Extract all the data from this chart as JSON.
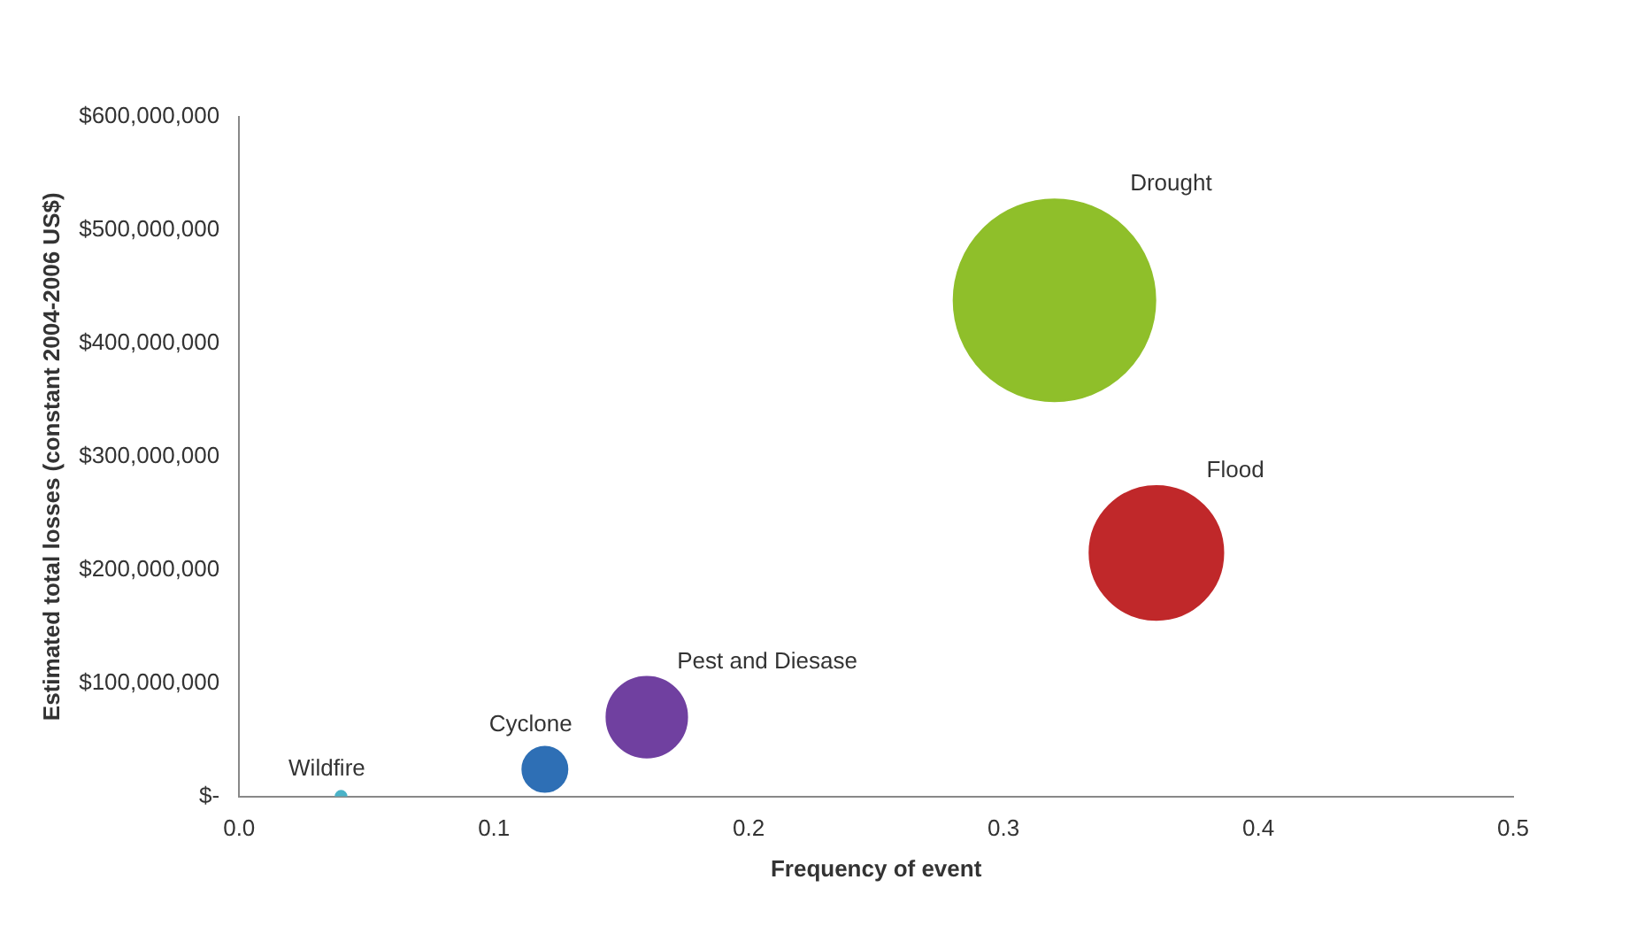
{
  "chart_data": {
    "type": "bubble",
    "xlabel": "Frequency of event",
    "ylabel": "Estimated total losses (constant 2004-2006 US$)",
    "xlim": [
      0,
      0.5
    ],
    "xticks": [
      {
        "value": 0,
        "label": "0.0"
      },
      0.1,
      0.2,
      0.3,
      0.4,
      0.5
    ],
    "ylim": [
      0,
      600000000
    ],
    "yticks": [
      {
        "value": 0,
        "label": "$-"
      },
      {
        "value": 100000000,
        "label": "$100,000,000"
      },
      {
        "value": 200000000,
        "label": "$200,000,000"
      },
      {
        "value": 300000000,
        "label": "$300,000,000"
      },
      {
        "value": 400000000,
        "label": "$400,000,000"
      },
      {
        "value": 500000000,
        "label": "$500,000,000"
      },
      {
        "value": 600000000,
        "label": "$600,000,000"
      }
    ],
    "grid": false,
    "legend": false,
    "series": [
      {
        "name": "Wildfire",
        "color": "#4bb3c8",
        "x": [
          0.04
        ],
        "values": [
          0
        ],
        "sizes": [
          0.003
        ]
      },
      {
        "name": "Cyclone",
        "color": "#2e6fb5",
        "x": [
          0.12
        ],
        "values": [
          24000000
        ],
        "sizes": [
          0.05
        ]
      },
      {
        "name": "Pest and Diesase",
        "color": "#7040a0",
        "x": [
          0.16
        ],
        "values": [
          70000000
        ],
        "sizes": [
          0.16
        ]
      },
      {
        "name": "Flood",
        "color": "#c0282a",
        "x": [
          0.36
        ],
        "values": [
          215000000
        ],
        "sizes": [
          0.44
        ]
      },
      {
        "name": "Drought",
        "color": "#8fbf2a",
        "x": [
          0.32
        ],
        "values": [
          438000000
        ],
        "sizes": [
          1
        ]
      }
    ]
  }
}
